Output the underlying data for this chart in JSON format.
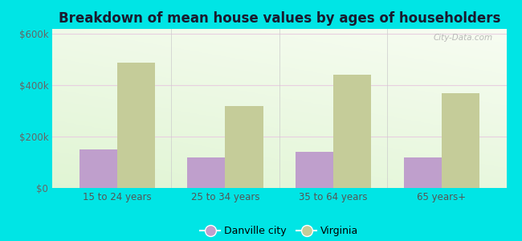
{
  "title": "Breakdown of mean house values by ages of householders",
  "categories": [
    "15 to 24 years",
    "25 to 34 years",
    "35 to 64 years",
    "65 years+"
  ],
  "danville_values": [
    150000,
    120000,
    140000,
    120000
  ],
  "virginia_values": [
    490000,
    320000,
    440000,
    370000
  ],
  "danville_color": "#bf9fcc",
  "virginia_color": "#c5cc99",
  "background_outer": "#00e5e5",
  "ylim": [
    0,
    620000
  ],
  "yticks": [
    0,
    200000,
    400000,
    600000
  ],
  "ytick_labels": [
    "$0",
    "$200k",
    "$400k",
    "$600k"
  ],
  "title_fontsize": 12,
  "legend_danville": "Danville city",
  "legend_virginia": "Virginia",
  "bar_width": 0.35,
  "watermark": "City-Data.com"
}
